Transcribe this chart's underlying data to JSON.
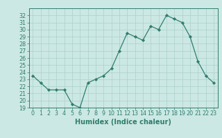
{
  "x": [
    0,
    1,
    2,
    3,
    4,
    5,
    6,
    7,
    8,
    9,
    10,
    11,
    12,
    13,
    14,
    15,
    16,
    17,
    18,
    19,
    20,
    21,
    22,
    23
  ],
  "y": [
    23.5,
    22.5,
    21.5,
    21.5,
    21.5,
    19.5,
    19.0,
    22.5,
    23.0,
    23.5,
    24.5,
    27.0,
    29.5,
    29.0,
    28.5,
    30.5,
    30.0,
    32.0,
    31.5,
    31.0,
    29.0,
    25.5,
    23.5,
    22.5
  ],
  "line_color": "#2e7d6e",
  "marker": "D",
  "marker_size": 2.2,
  "bg_color": "#cce8e4",
  "grid_color": "#aacfcb",
  "axis_color": "#2e7d6e",
  "xlabel": "Humidex (Indice chaleur)",
  "ylim": [
    19,
    33
  ],
  "xlim": [
    -0.5,
    23.5
  ],
  "yticks": [
    19,
    20,
    21,
    22,
    23,
    24,
    25,
    26,
    27,
    28,
    29,
    30,
    31,
    32
  ],
  "xticks": [
    0,
    1,
    2,
    3,
    4,
    5,
    6,
    7,
    8,
    9,
    10,
    11,
    12,
    13,
    14,
    15,
    16,
    17,
    18,
    19,
    20,
    21,
    22,
    23
  ],
  "tick_fontsize": 5.8,
  "label_fontsize": 7.0
}
